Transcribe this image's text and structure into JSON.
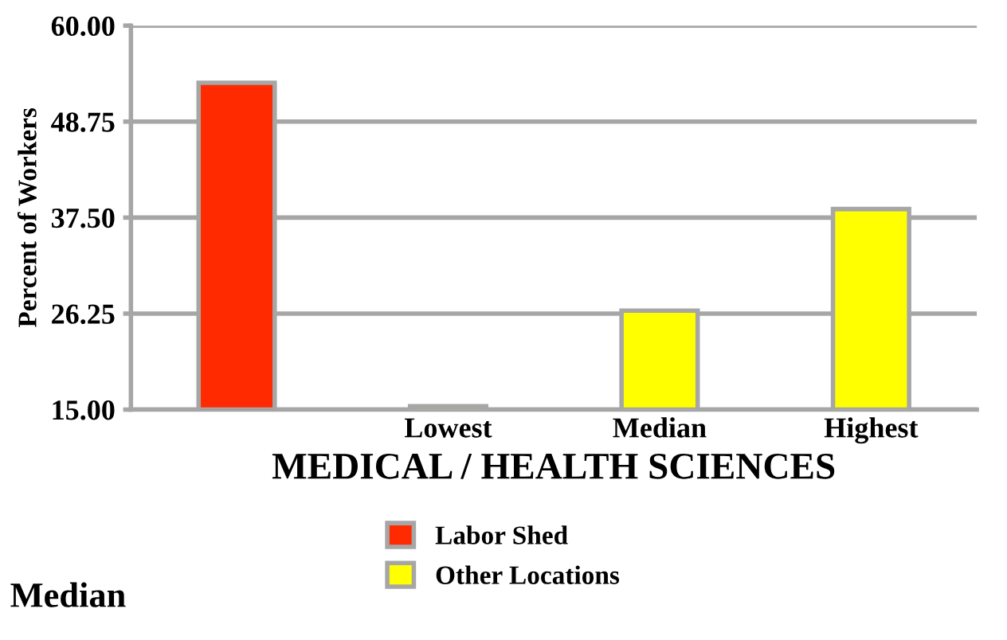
{
  "chart_data": {
    "type": "bar",
    "xlabel": "MEDICAL / HEALTH SCIENCES",
    "ylabel": "Percent of Workers",
    "categories": [
      null,
      "Lowest",
      "Median",
      "Highest"
    ],
    "series": [
      {
        "name": "Labor Shed",
        "color": "#ff2a00",
        "values": [
          53.3,
          null,
          null,
          null
        ]
      },
      {
        "name": "Other Locations",
        "color": "#ffff00",
        "values": [
          null,
          15.4,
          26.6,
          38.5
        ]
      }
    ],
    "ylim": [
      15,
      60
    ],
    "yticks": [
      {
        "value": 15,
        "label": "15.00"
      },
      {
        "value": 26.25,
        "label": "26.25"
      },
      {
        "value": 37.5,
        "label": "37.50"
      },
      {
        "value": 48.75,
        "label": "48.75"
      },
      {
        "value": 60,
        "label": "60.00"
      }
    ],
    "grid": "y",
    "legend": "bottom",
    "annotations": [
      "Median"
    ]
  }
}
